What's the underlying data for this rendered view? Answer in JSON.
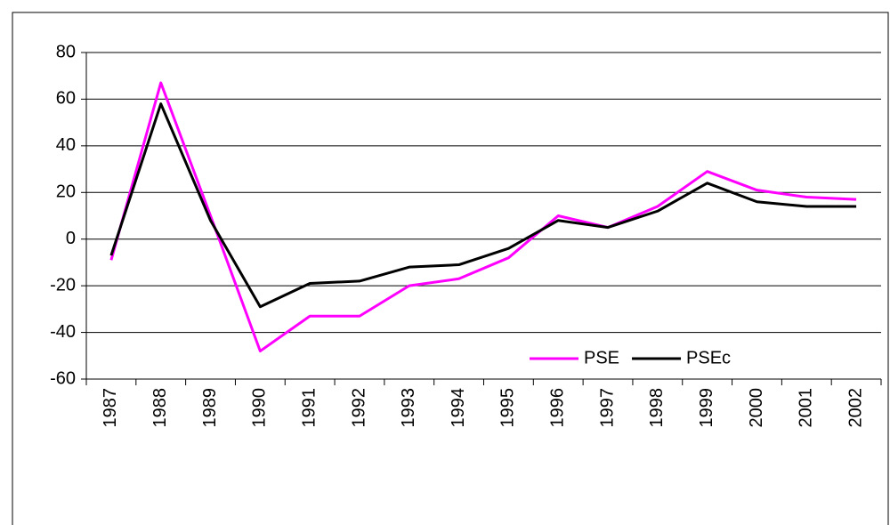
{
  "chart_data": {
    "type": "line",
    "categories": [
      "1987",
      "1988",
      "1989",
      "1990",
      "1991",
      "1992",
      "1993",
      "1994",
      "1995",
      "1996",
      "1997",
      "1998",
      "1999",
      "2000",
      "2001",
      "2002"
    ],
    "series": [
      {
        "name": "PSE",
        "color": "#ff00ff",
        "values": [
          -9,
          67,
          10,
          -48,
          -33,
          -33,
          -20,
          -17,
          -8,
          10,
          5,
          14,
          29,
          21,
          18,
          17
        ]
      },
      {
        "name": "PSEc",
        "color": "#000000",
        "values": [
          -7,
          58,
          8,
          -29,
          -19,
          -18,
          -12,
          -11,
          -4,
          8,
          5,
          12,
          24,
          16,
          14,
          14
        ]
      }
    ],
    "ylim": [
      -60,
      80
    ],
    "yticks": [
      -60,
      -40,
      -20,
      0,
      20,
      40,
      60,
      80
    ],
    "grid": true
  }
}
